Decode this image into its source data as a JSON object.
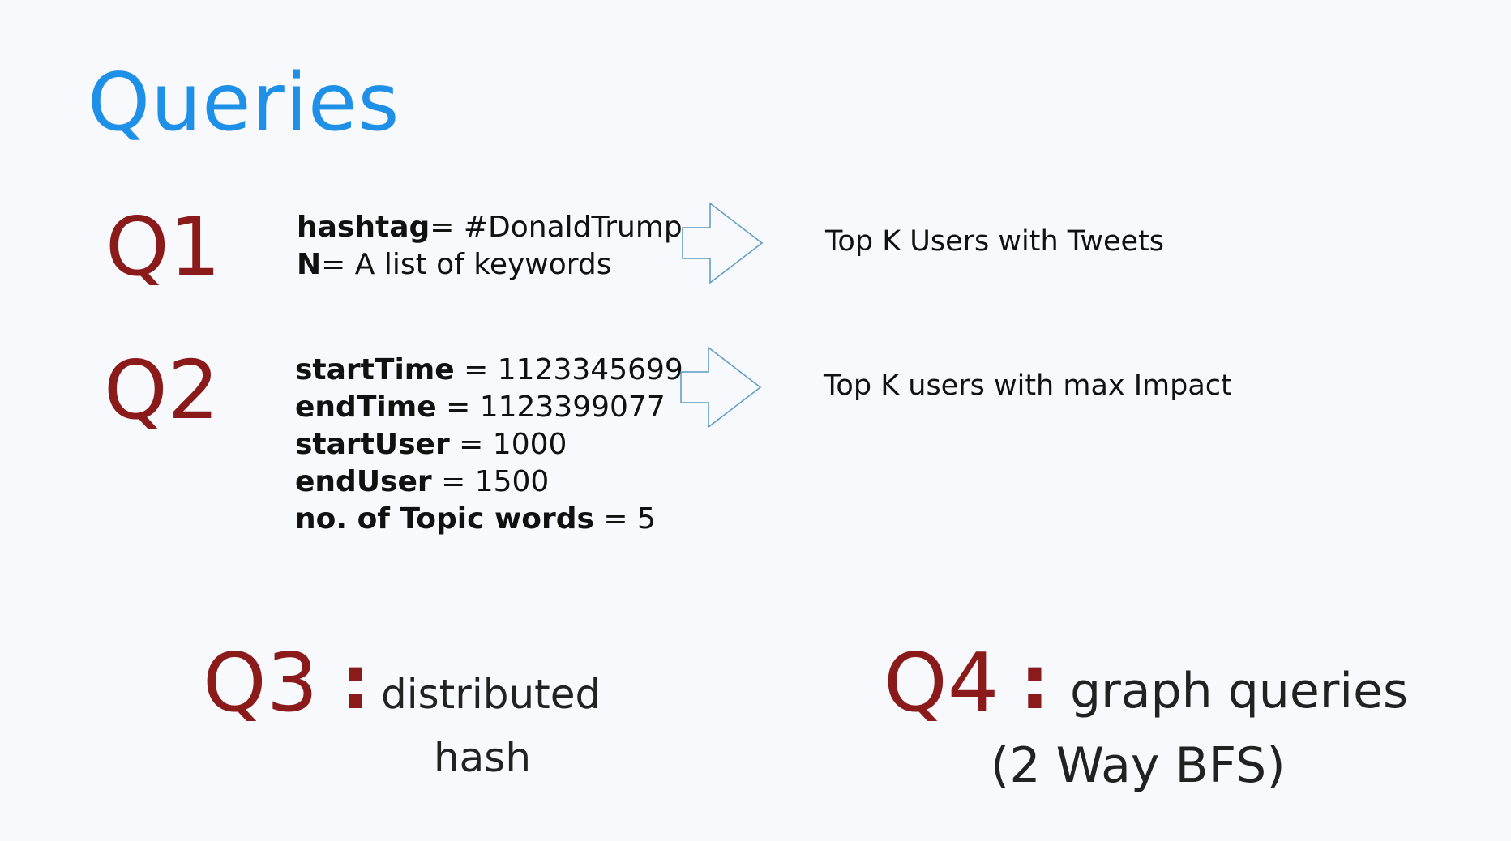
{
  "title": "Queries",
  "colors": {
    "title": "#1e90e8",
    "query_label": "#8b1a1a",
    "arrow_stroke": "#5a9bc4"
  },
  "q1": {
    "label": "Q1",
    "params": [
      {
        "key": "hashtag",
        "value": "= #DonaldTrump"
      },
      {
        "key": "N",
        "value": "= A list of  keywords"
      }
    ],
    "arrow_icon": "right-arrow-icon",
    "result": "Top K Users with Tweets"
  },
  "q2": {
    "label": "Q2",
    "params": [
      {
        "key": "startTime",
        "value": " = 1123345699"
      },
      {
        "key": "endTime",
        "value": " = 1123399077"
      },
      {
        "key": "startUser",
        "value": "  = 1000"
      },
      {
        "key": "endUser",
        "value": "  = 1500"
      },
      {
        "key": "no. of Topic words",
        "value": " = 5"
      }
    ],
    "arrow_icon": "right-arrow-icon",
    "result": "Top K users with max Impact"
  },
  "q3": {
    "label": "Q3",
    "colon": ":",
    "text_line1": "distributed",
    "text_line2": "hash"
  },
  "q4": {
    "label": "Q4",
    "colon": ":",
    "text_line1": "graph queries",
    "text_line2": "(2 Way BFS)"
  }
}
